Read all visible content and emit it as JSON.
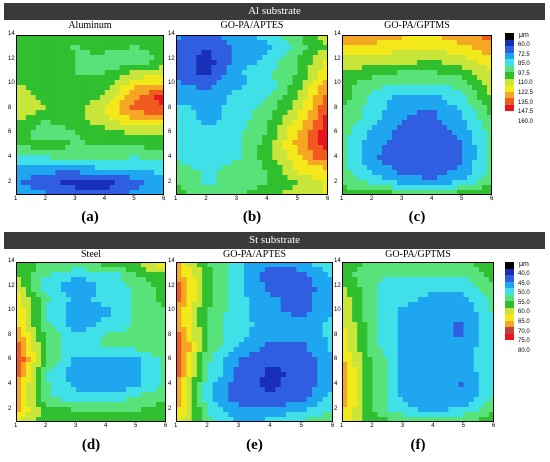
{
  "sections": [
    {
      "banner": "Al substrate"
    },
    {
      "banner": "St substrate"
    }
  ],
  "chart_data": [
    {
      "type": "heatmap",
      "panel": "(a)",
      "title": "Aluminum",
      "unit": "μm",
      "x_ticks": [
        "1",
        "2",
        "3",
        "4",
        "5",
        "6"
      ],
      "y_ticks": [
        "2",
        "4",
        "6",
        "8",
        "10",
        "12",
        "14"
      ],
      "xlim": [
        1,
        6
      ],
      "ylim": [
        1,
        14
      ],
      "z_grid": [
        [
          85,
          80,
          75,
          72,
          80,
          85
        ],
        [
          80,
          72,
          65,
          65,
          75,
          85
        ],
        [
          85,
          80,
          80,
          85,
          85,
          90
        ],
        [
          95,
          95,
          100,
          100,
          95,
          100
        ],
        [
          105,
          110,
          105,
          105,
          105,
          110
        ],
        [
          110,
          100,
          105,
          110,
          115,
          115
        ],
        [
          115,
          105,
          110,
          120,
          130,
          130
        ],
        [
          125,
          115,
          110,
          125,
          145,
          150
        ],
        [
          120,
          110,
          110,
          115,
          140,
          155
        ],
        [
          115,
          110,
          110,
          110,
          130,
          135
        ],
        [
          110,
          110,
          105,
          105,
          115,
          120
        ],
        [
          110,
          115,
          105,
          100,
          95,
          110
        ],
        [
          110,
          110,
          105,
          110,
          105,
          110
        ],
        [
          110,
          110,
          110,
          115,
          110,
          115
        ]
      ]
    },
    {
      "type": "heatmap",
      "panel": "(b)",
      "title": "GO-PA/APTES",
      "unit": "μm",
      "x_ticks": [
        "1",
        "2",
        "3",
        "4",
        "5",
        "6"
      ],
      "y_ticks": [
        "2",
        "4",
        "6",
        "8",
        "10",
        "12",
        "14"
      ],
      "xlim": [
        1,
        6
      ],
      "ylim": [
        1,
        14
      ],
      "z_grid": [
        [
          110,
          100,
          105,
          110,
          120,
          125
        ],
        [
          105,
          95,
          100,
          105,
          115,
          125
        ],
        [
          100,
          95,
          100,
          105,
          125,
          130
        ],
        [
          95,
          90,
          95,
          110,
          130,
          150
        ],
        [
          90,
          90,
          95,
          110,
          135,
          155
        ],
        [
          95,
          90,
          95,
          105,
          135,
          160
        ],
        [
          95,
          85,
          90,
          105,
          125,
          155
        ],
        [
          90,
          85,
          90,
          100,
          120,
          150
        ],
        [
          85,
          80,
          90,
          95,
          115,
          145
        ],
        [
          80,
          75,
          85,
          90,
          110,
          140
        ],
        [
          75,
          65,
          85,
          95,
          105,
          130
        ],
        [
          75,
          65,
          80,
          90,
          105,
          125
        ],
        [
          75,
          70,
          80,
          85,
          100,
          115
        ],
        [
          80,
          75,
          85,
          90,
          105,
          120
        ]
      ]
    },
    {
      "type": "heatmap",
      "panel": "(c)",
      "title": "GO-PA/GPTMS",
      "unit": "μm",
      "x_ticks": [
        "1",
        "2",
        "3",
        "4",
        "5",
        "6"
      ],
      "y_ticks": [
        "2",
        "4",
        "6",
        "8",
        "10",
        "12",
        "14"
      ],
      "xlim": [
        1,
        6
      ],
      "ylim": [
        1,
        14
      ],
      "z_grid": [
        [
          110,
          110,
          110,
          110,
          110,
          115
        ],
        [
          105,
          95,
          85,
          80,
          90,
          105
        ],
        [
          100,
          85,
          75,
          72,
          80,
          100
        ],
        [
          100,
          80,
          72,
          70,
          78,
          100
        ],
        [
          100,
          82,
          72,
          70,
          78,
          100
        ],
        [
          100,
          85,
          75,
          72,
          80,
          100
        ],
        [
          105,
          90,
          78,
          75,
          85,
          105
        ],
        [
          105,
          92,
          80,
          78,
          88,
          110
        ],
        [
          110,
          95,
          85,
          85,
          95,
          115
        ],
        [
          110,
          100,
          95,
          95,
          100,
          120
        ],
        [
          115,
          110,
          105,
          105,
          110,
          125
        ],
        [
          120,
          120,
          120,
          115,
          120,
          130
        ],
        [
          130,
          130,
          125,
          125,
          130,
          140
        ],
        [
          140,
          140,
          135,
          130,
          140,
          145
        ]
      ]
    },
    {
      "type": "heatmap",
      "panel": "(d)",
      "title": "Steel",
      "unit": "μm",
      "x_ticks": [
        "1",
        "2",
        "3",
        "4",
        "5",
        "6"
      ],
      "y_ticks": [
        "2",
        "4",
        "6",
        "8",
        "10",
        "12",
        "14"
      ],
      "xlim": [
        1,
        6
      ],
      "ylim": [
        1,
        14
      ],
      "z_grid": [
        [
          65,
          60,
          60,
          60,
          60,
          62
        ],
        [
          70,
          60,
          58,
          58,
          58,
          60
        ],
        [
          72,
          55,
          52,
          52,
          55,
          58
        ],
        [
          72,
          55,
          50,
          48,
          50,
          55
        ],
        [
          75,
          55,
          48,
          50,
          50,
          55
        ],
        [
          78,
          58,
          50,
          48,
          50,
          55
        ],
        [
          75,
          58,
          52,
          55,
          55,
          58
        ],
        [
          72,
          58,
          52,
          55,
          55,
          58
        ],
        [
          70,
          55,
          48,
          52,
          55,
          58
        ],
        [
          70,
          55,
          48,
          50,
          55,
          58
        ],
        [
          68,
          55,
          50,
          52,
          55,
          60
        ],
        [
          65,
          52,
          48,
          52,
          55,
          60
        ],
        [
          62,
          55,
          52,
          52,
          58,
          62
        ],
        [
          60,
          58,
          58,
          60,
          62,
          70
        ]
      ]
    },
    {
      "type": "heatmap",
      "panel": "(e)",
      "title": "GO-PA/APTES",
      "unit": "μm",
      "x_ticks": [
        "1",
        "2",
        "3",
        "4",
        "5",
        "6"
      ],
      "y_ticks": [
        "2",
        "4",
        "6",
        "8",
        "10",
        "12",
        "14"
      ],
      "xlim": [
        1,
        6
      ],
      "ylim": [
        1,
        14
      ],
      "z_grid": [
        [
          68,
          55,
          50,
          52,
          55,
          58
        ],
        [
          70,
          55,
          48,
          48,
          50,
          55
        ],
        [
          72,
          52,
          45,
          44,
          46,
          52
        ],
        [
          72,
          52,
          45,
          43,
          45,
          50
        ],
        [
          75,
          55,
          46,
          43,
          44,
          50
        ],
        [
          75,
          55,
          47,
          44,
          45,
          50
        ],
        [
          78,
          58,
          50,
          46,
          46,
          52
        ],
        [
          75,
          58,
          52,
          48,
          48,
          52
        ],
        [
          72,
          58,
          52,
          50,
          48,
          52
        ],
        [
          72,
          58,
          52,
          48,
          46,
          50
        ],
        [
          75,
          60,
          52,
          48,
          46,
          50
        ],
        [
          75,
          60,
          52,
          46,
          45,
          50
        ],
        [
          72,
          60,
          52,
          45,
          46,
          52
        ],
        [
          70,
          58,
          52,
          48,
          50,
          55
        ]
      ]
    },
    {
      "type": "heatmap",
      "panel": "(f)",
      "title": "GO-PA/GPTMS",
      "unit": "μm",
      "x_ticks": [
        "1",
        "2",
        "3",
        "4",
        "5",
        "6"
      ],
      "y_ticks": [
        "2",
        "4",
        "6",
        "8",
        "10",
        "12",
        "14"
      ],
      "xlim": [
        1,
        6
      ],
      "ylim": [
        1,
        14
      ],
      "z_grid": [
        [
          68,
          60,
          58,
          58,
          58,
          60
        ],
        [
          70,
          58,
          52,
          50,
          52,
          58
        ],
        [
          72,
          58,
          50,
          48,
          48,
          55
        ],
        [
          72,
          58,
          50,
          48,
          47,
          55
        ],
        [
          72,
          58,
          50,
          48,
          48,
          55
        ],
        [
          70,
          58,
          50,
          48,
          48,
          55
        ],
        [
          68,
          56,
          50,
          48,
          48,
          55
        ],
        [
          68,
          56,
          50,
          48,
          47,
          55
        ],
        [
          66,
          56,
          50,
          48,
          47,
          55
        ],
        [
          65,
          55,
          50,
          48,
          48,
          55
        ],
        [
          65,
          55,
          52,
          50,
          50,
          56
        ],
        [
          62,
          55,
          52,
          52,
          52,
          58
        ],
        [
          60,
          55,
          55,
          55,
          55,
          60
        ],
        [
          60,
          58,
          58,
          58,
          58,
          60
        ]
      ]
    }
  ],
  "legends": [
    {
      "unit": "μm",
      "labels": [
        "60.0",
        "72.5",
        "85.0",
        "97.5",
        "110.0",
        "122.5",
        "135.0",
        "147.5",
        "160.0"
      ],
      "colors": [
        "#000000",
        "#1a2fb8",
        "#2f5fe0",
        "#1ea7f0",
        "#40e0e8",
        "#58e27a",
        "#2fbf2f",
        "#c8e63a",
        "#f2e81a",
        "#f5a623",
        "#f05a1e",
        "#e8141e"
      ]
    },
    {
      "unit": "μm",
      "labels": [
        "40.0",
        "45.0",
        "50.0",
        "55.0",
        "60.0",
        "65.0",
        "70.0",
        "75.0",
        "80.0"
      ],
      "colors": [
        "#000000",
        "#1a2fb8",
        "#2f5fe0",
        "#1ea7f0",
        "#40e0e8",
        "#58e27a",
        "#2fbf2f",
        "#c8e63a",
        "#f2e81a",
        "#f5a623",
        "#c04040",
        "#e8141e"
      ]
    }
  ],
  "colormap": {
    "al": {
      "min": 60,
      "max": 160
    },
    "st": {
      "min": 40,
      "max": 80
    }
  }
}
